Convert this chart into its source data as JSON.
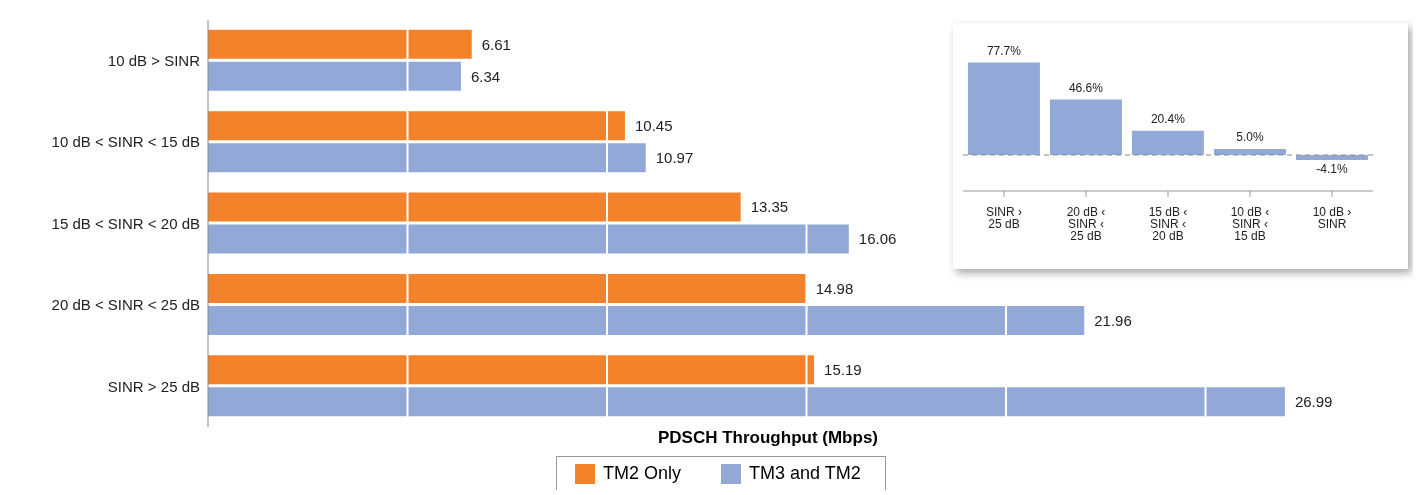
{
  "chart_data": [
    {
      "type": "bar",
      "orientation": "horizontal",
      "xlabel": "PDSCH Throughput (Mbps)",
      "categories": [
        "10 dB > SINR",
        "10 dB < SINR < 15 dB",
        "15 dB < SINR < 20 dB",
        "20 dB < SINR < 25 dB",
        "SINR > 25 dB"
      ],
      "series": [
        {
          "name": "TM2 Only",
          "color": "#f4822a",
          "values": [
            6.61,
            10.45,
            13.35,
            14.98,
            15.19
          ]
        },
        {
          "name": "TM3 and TM2",
          "color": "#92a9d7",
          "values": [
            6.34,
            10.97,
            16.06,
            21.96,
            26.99
          ]
        }
      ],
      "xticks": [
        {
          "value": 5,
          "label": null
        },
        {
          "value": 10,
          "label": null
        },
        {
          "value": 15,
          "label": null
        },
        {
          "value": 20,
          "label": null
        },
        {
          "value": 25,
          "label": null
        }
      ],
      "grid": "x",
      "tick_labels": "y",
      "data_labels": true,
      "legend": "bottom"
    },
    {
      "type": "bar",
      "categories": [
        "SINR › 25 dB",
        "20 dB ‹ SINR ‹ 25 dB",
        "15 dB ‹ SINR ‹ 20 dB",
        "10 dB ‹ SINR ‹ 15 dB",
        "10 dB › SINR"
      ],
      "values": [
        77.7,
        46.6,
        20.4,
        5.0,
        -4.1
      ],
      "color": "#92a9d7",
      "value_labels": [
        "77.7%",
        "46.6%",
        "20.4%",
        "5.0%",
        "-4.1%"
      ],
      "ref_lines": [
        {
          "axis": "y",
          "value": 0,
          "line_style": "dashed",
          "color": "#8a8a8a"
        }
      ],
      "tick_labels": "x"
    }
  ]
}
